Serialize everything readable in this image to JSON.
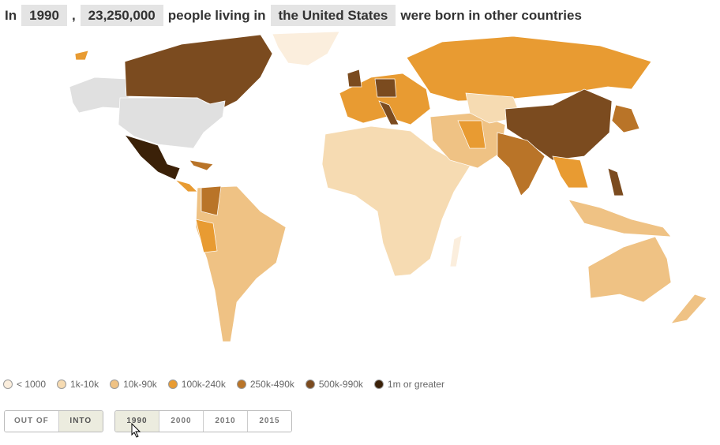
{
  "header": {
    "prefix": "In",
    "year": "1990",
    "comma": ",",
    "count": "23,250,000",
    "middle": "people living in",
    "country": "the United States",
    "suffix": "were born in other countries"
  },
  "legend": [
    {
      "label": "< 1000",
      "color": "#fbeedd"
    },
    {
      "label": "1k-10k",
      "color": "#f6dbb2"
    },
    {
      "label": "10k-90k",
      "color": "#efc284"
    },
    {
      "label": "100k-240k",
      "color": "#e89b32"
    },
    {
      "label": "250k-490k",
      "color": "#b97428"
    },
    {
      "label": "500k-990k",
      "color": "#7b4b1f"
    },
    {
      "label": "1m or greater",
      "color": "#3b2108"
    }
  ],
  "direction_buttons": [
    "OUT OF",
    "INTO"
  ],
  "year_buttons": [
    "1990",
    "2000",
    "2010",
    "2015"
  ]
}
